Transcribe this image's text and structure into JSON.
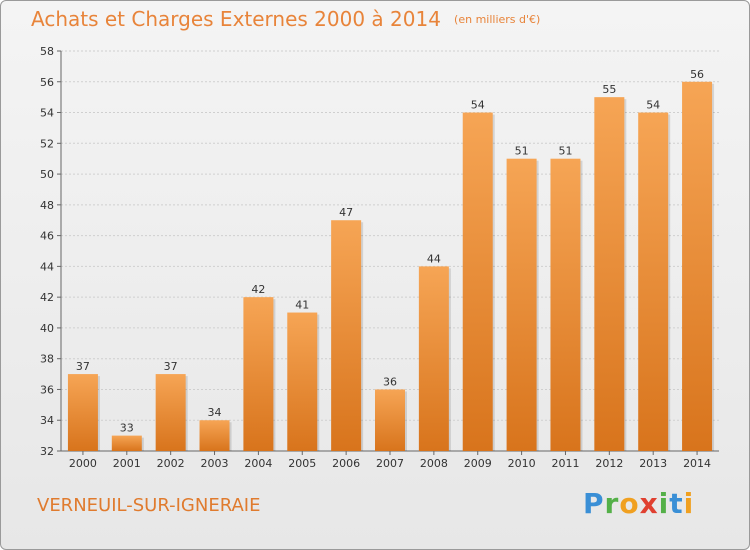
{
  "header": {
    "title": "Achats et Charges Externes 2000 à 2014",
    "subtitle": "(en milliers d'€)"
  },
  "footer": {
    "place": "VERNEUIL-SUR-IGNERAIE",
    "logo": [
      "P",
      "r",
      "o",
      "x",
      "i",
      "t",
      "i"
    ]
  },
  "colors": {
    "title": "#e8843a",
    "bar_top": "#f6a555",
    "bar_bottom": "#d8741c",
    "grid": "#cfcfcf"
  },
  "chart_data": {
    "type": "bar",
    "title": "Achats et Charges Externes 2000 à 2014",
    "subtitle": "(en milliers d'€)",
    "xlabel": "",
    "ylabel": "",
    "categories": [
      "2000",
      "2001",
      "2002",
      "2003",
      "2004",
      "2005",
      "2006",
      "2007",
      "2008",
      "2009",
      "2010",
      "2011",
      "2012",
      "2013",
      "2014"
    ],
    "values": [
      37,
      33,
      37,
      34,
      42,
      41,
      47,
      36,
      44,
      54,
      51,
      51,
      55,
      54,
      56
    ],
    "ylim": [
      32,
      58
    ],
    "yticks": [
      32,
      34,
      36,
      38,
      40,
      42,
      44,
      46,
      48,
      50,
      52,
      54,
      56,
      58
    ],
    "grid": true,
    "data_labels": true
  }
}
